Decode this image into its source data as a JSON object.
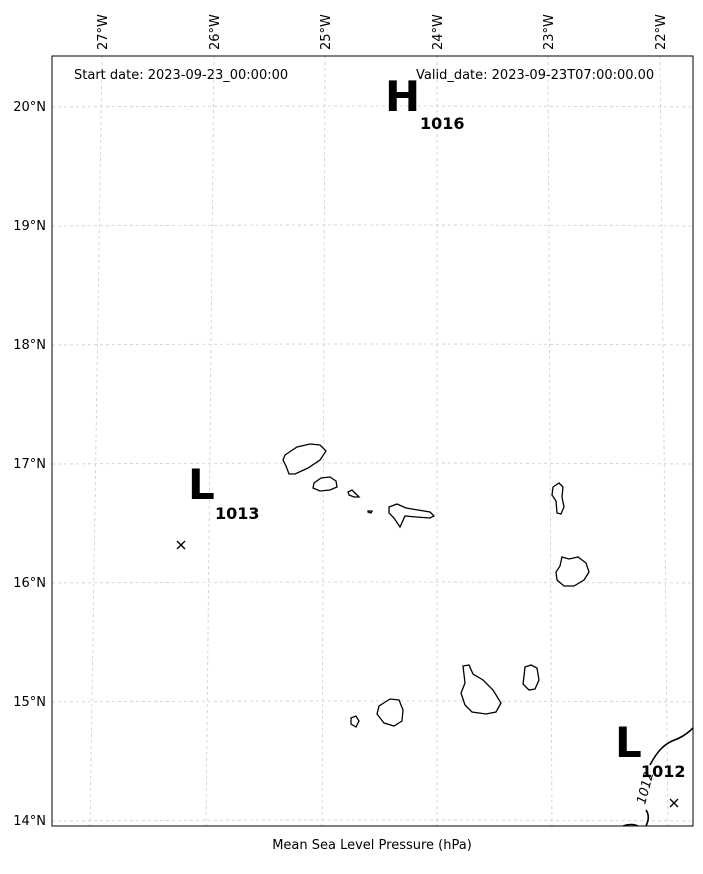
{
  "header": {
    "start_date": "Start date: 2023-09-23_00:00:00",
    "valid_date": "Valid_date: 2023-09-23T07:00:00.00"
  },
  "caption": "Mean Sea Level Pressure (hPa)",
  "axes": {
    "lon_ticks": [
      "27°W",
      "26°W",
      "25°W",
      "24°W",
      "23°W",
      "22°W"
    ],
    "lat_ticks": [
      "20°N",
      "19°N",
      "18°N",
      "17°N",
      "16°N",
      "15°N",
      "14°N"
    ]
  },
  "pressure_systems": [
    {
      "type": "H",
      "pressure": "1016"
    },
    {
      "type": "L",
      "pressure": "1013"
    },
    {
      "type": "L",
      "pressure": "1012"
    }
  ],
  "contour_label": "1012"
}
